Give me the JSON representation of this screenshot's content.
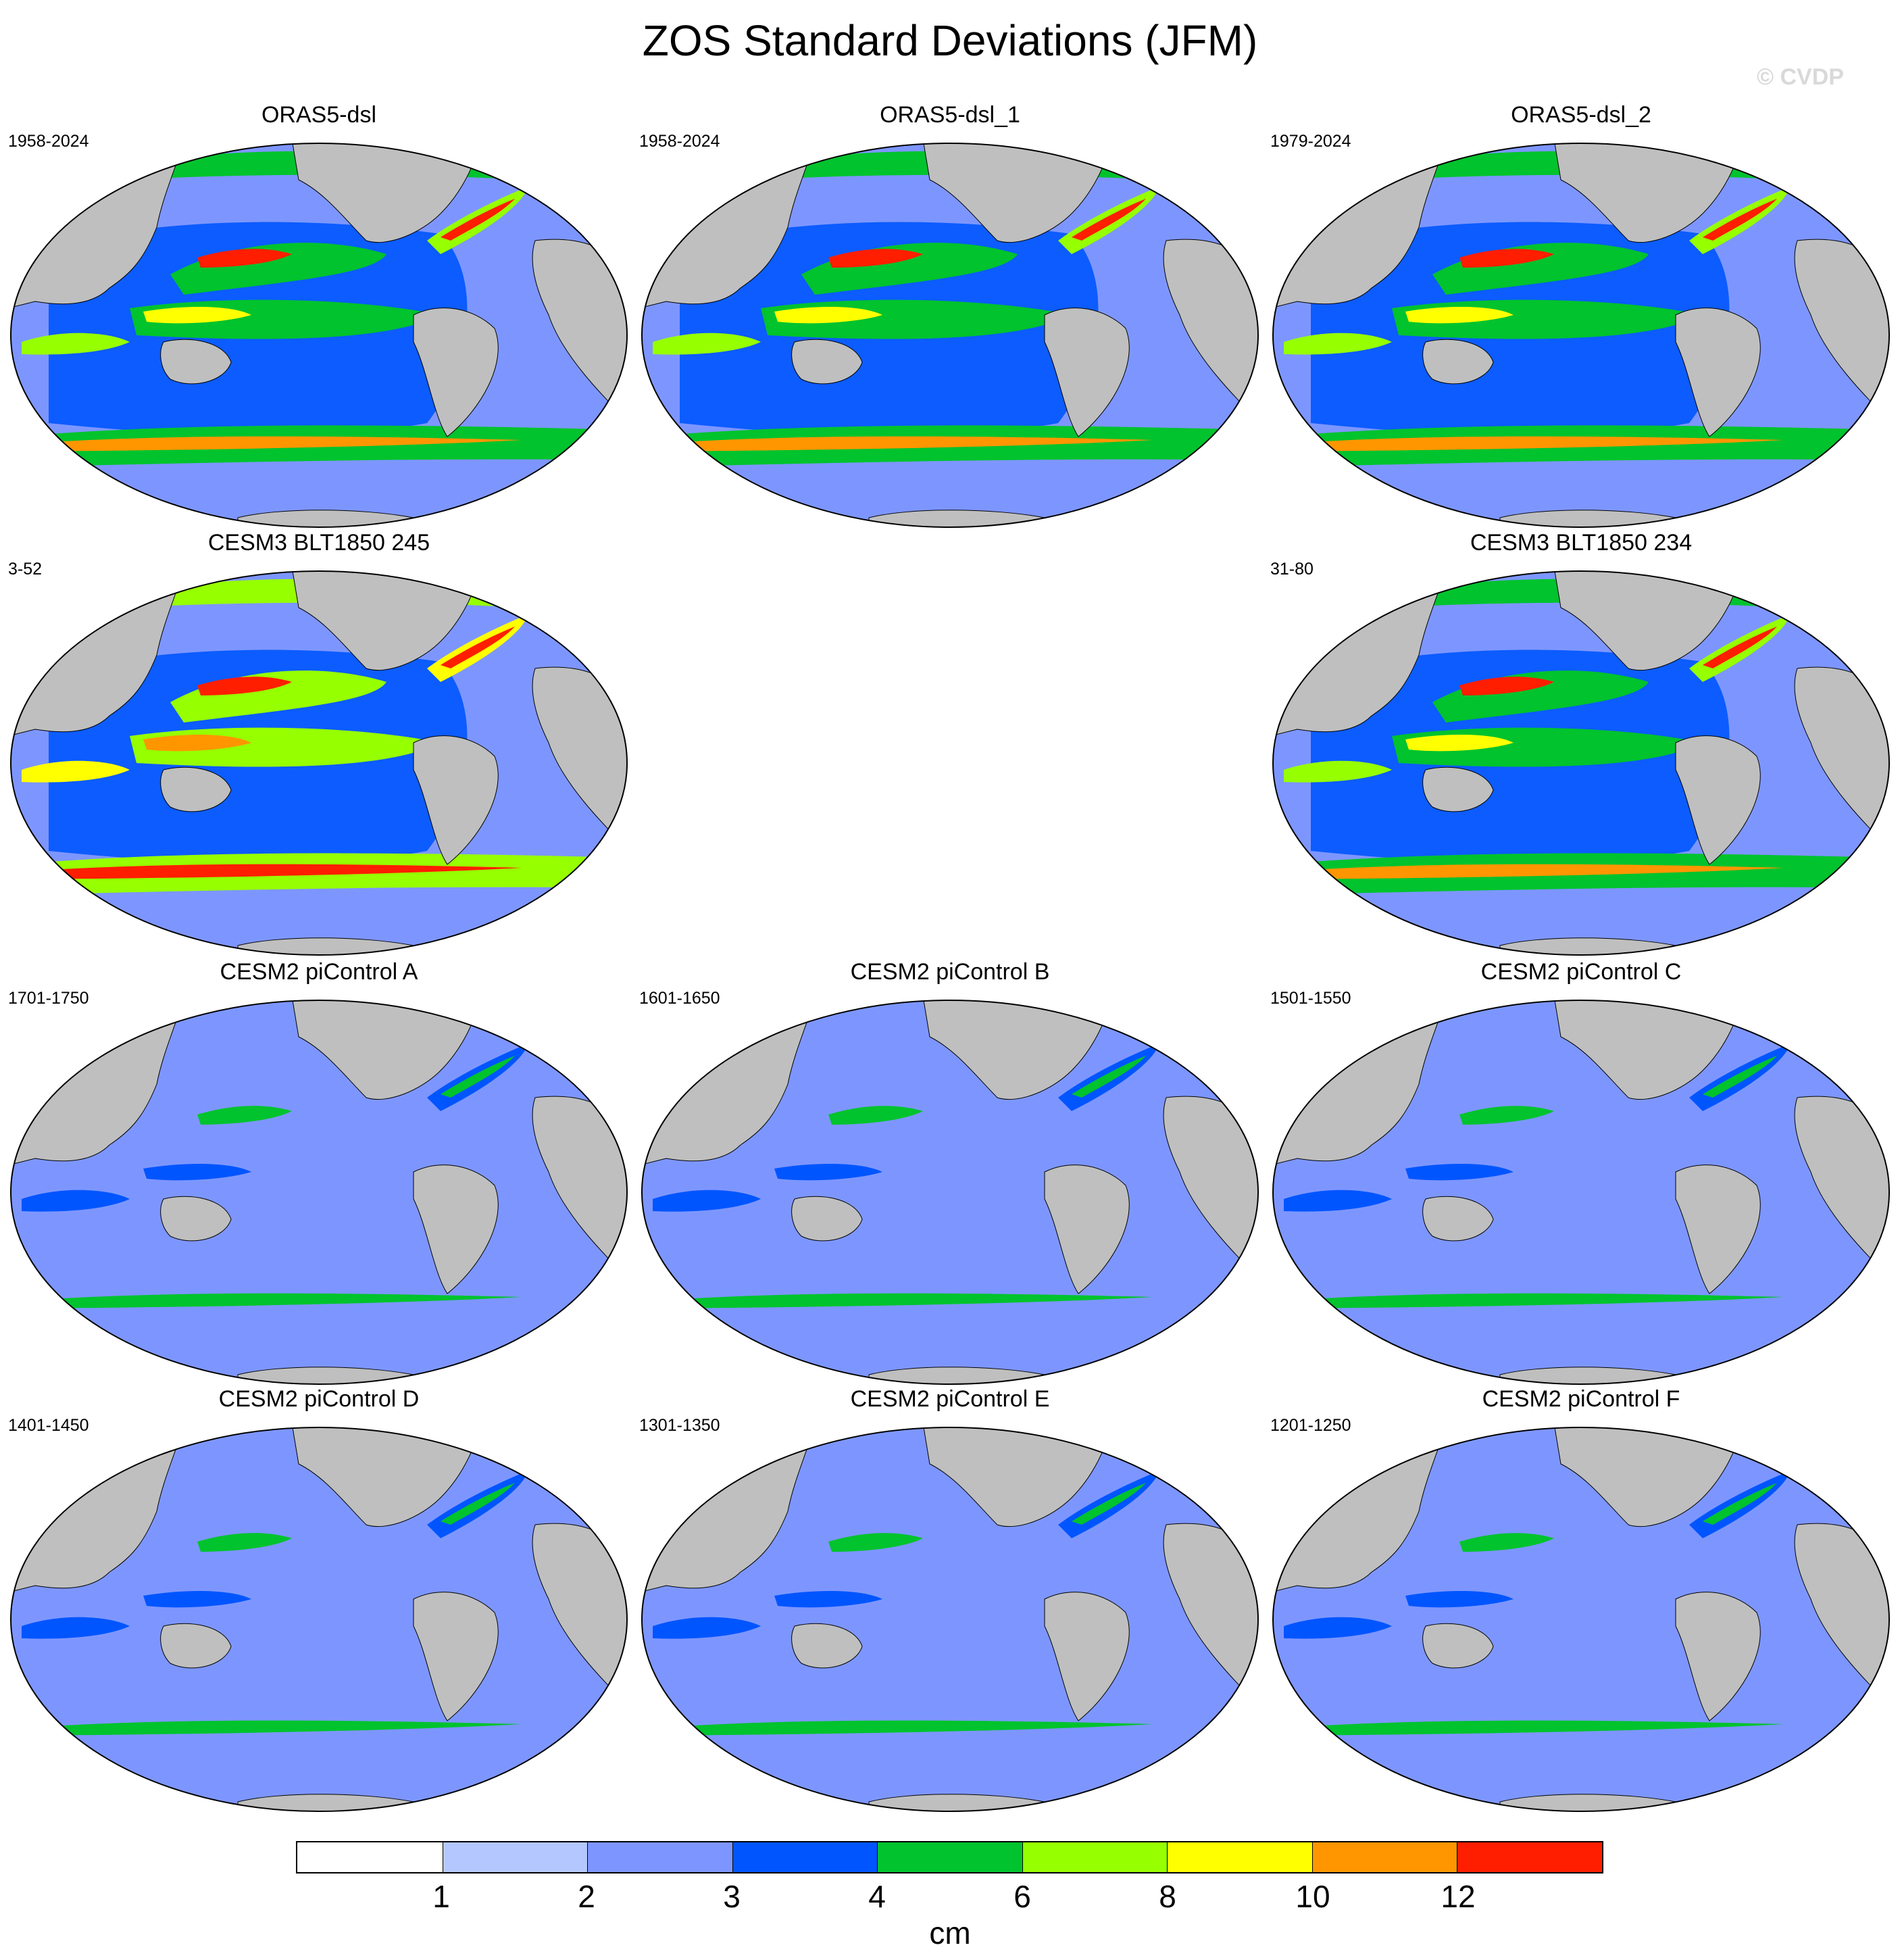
{
  "title": "ZOS Standard Deviations (JFM)",
  "watermark": "© CVDP",
  "panels": [
    {
      "title": "ORAS5-dsl",
      "period": "1958-2024",
      "intensity": 1.0
    },
    {
      "title": "ORAS5-dsl_1",
      "period": "1958-2024",
      "intensity": 1.0
    },
    {
      "title": "ORAS5-dsl_2",
      "period": "1979-2024",
      "intensity": 1.0
    },
    {
      "title": "CESM3 BLT1850 245",
      "period": "3-52",
      "intensity": 1.15
    },
    {
      "title": "CESM3 BLT1850 234",
      "period": "31-80",
      "intensity": 1.05
    },
    {
      "title": "CESM2 piControl A",
      "period": "1701-1750",
      "intensity": 0.55
    },
    {
      "title": "CESM2 piControl B",
      "period": "1601-1650",
      "intensity": 0.55
    },
    {
      "title": "CESM2 piControl C",
      "period": "1501-1550",
      "intensity": 0.55
    },
    {
      "title": "CESM2 piControl D",
      "period": "1401-1450",
      "intensity": 0.5
    },
    {
      "title": "CESM2 piControl E",
      "period": "1301-1350",
      "intensity": 0.5
    },
    {
      "title": "CESM2 piControl F",
      "period": "1201-1250",
      "intensity": 0.5
    }
  ],
  "colorbar": {
    "units": "cm",
    "levels": [
      "1",
      "2",
      "3",
      "4",
      "6",
      "8",
      "10",
      "12"
    ],
    "colors": [
      "#ffffff",
      "#b4c8ff",
      "#7d96ff",
      "#0055ff",
      "#00c32d",
      "#96ff00",
      "#ffff00",
      "#ff9600",
      "#ff1e00"
    ]
  },
  "colors": {
    "land": "#bfbfbf",
    "coast": "#000000",
    "page": "#ffffff"
  }
}
